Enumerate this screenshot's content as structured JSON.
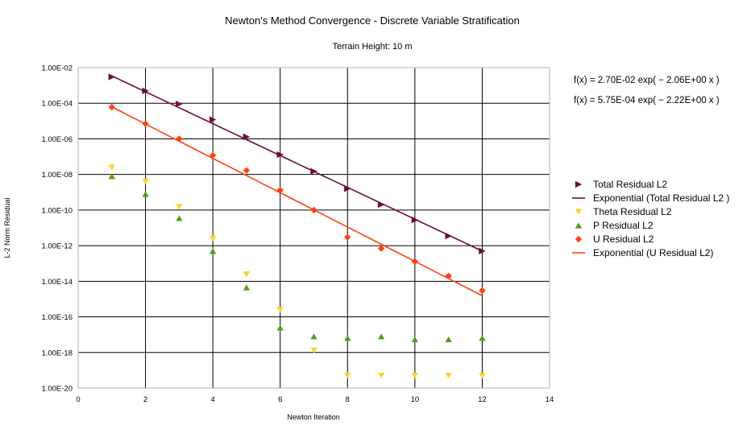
{
  "chart_data": {
    "type": "scatter",
    "title": "Newton's Method Convergence - Discrete Variable Stratification",
    "subtitle": "Terrain Height: 10 m",
    "xlabel": "Newton Iteration",
    "ylabel": "L-2 Norm Residual",
    "xlim": [
      0,
      14
    ],
    "ylim": [
      1e-20,
      0.01
    ],
    "yscale": "log",
    "grid": true,
    "legend_position": "right",
    "x_ticks": [
      "0",
      "2",
      "4",
      "6",
      "8",
      "10",
      "12",
      "14"
    ],
    "y_ticks": [
      "1.00E-02",
      "1.00E-04",
      "1.00E-06",
      "1.00E-08",
      "1.00E-10",
      "1.00E-12",
      "1.00E-14",
      "1.00E-16",
      "1.00E-18",
      "1.00E-20"
    ],
    "equations": [
      "f(x) = 2.70E-02 exp( − 2.06E+00 x )",
      "f(x) = 5.75E-04 exp( − 2.22E+00 x )"
    ],
    "series": [
      {
        "name": "Total Residual L2",
        "marker": "triangle-right",
        "color": "#6b0f2a",
        "x": [
          1,
          2,
          3,
          4,
          5,
          6,
          7,
          8,
          9,
          10,
          11,
          12
        ],
        "y": [
          0.003,
          0.0005,
          9e-05,
          1.2e-05,
          1.3e-06,
          1.3e-07,
          1.5e-08,
          1.6e-09,
          2e-10,
          2.8e-11,
          3.5e-12,
          5e-13
        ]
      },
      {
        "name": "Exponential (Total Residual L2 )",
        "type": "line",
        "color": "#6b0f2a",
        "fit": {
          "a": 0.027,
          "b": -2.06
        },
        "x_range": [
          1,
          12
        ]
      },
      {
        "name": "Theta Residual L2",
        "marker": "triangle-down",
        "color": "#ffd320",
        "x": [
          1,
          2,
          3,
          4,
          5,
          6,
          7,
          8,
          9,
          10,
          11,
          12
        ],
        "y": [
          2.5e-08,
          4e-09,
          1.5e-10,
          2.5e-12,
          2.5e-14,
          2.5e-16,
          1.3e-18,
          5e-20,
          5e-20,
          5e-20,
          5e-20,
          5e-20
        ]
      },
      {
        "name": "P Residual L2",
        "marker": "triangle-up",
        "color": "#579d1c",
        "x": [
          1,
          2,
          3,
          4,
          5,
          6,
          7,
          8,
          9,
          10,
          11,
          12
        ],
        "y": [
          8e-09,
          8e-10,
          3.5e-11,
          5e-13,
          4.5e-15,
          2.5e-17,
          8e-18,
          6.5e-18,
          8e-18,
          5.5e-18,
          5.5e-18,
          6.5e-18
        ]
      },
      {
        "name": "U Residual L2",
        "marker": "diamond",
        "color": "#ff420e",
        "x": [
          1,
          2,
          3,
          4,
          5,
          6,
          7,
          8,
          9,
          10,
          11,
          12
        ],
        "y": [
          6e-05,
          7e-06,
          1e-06,
          1.2e-07,
          1.7e-08,
          1.3e-09,
          1e-10,
          3e-12,
          7e-13,
          1.3e-13,
          2e-14,
          3e-15
        ]
      },
      {
        "name": "Exponential (U Residual L2)",
        "type": "line",
        "color": "#ff420e",
        "fit": {
          "a": 0.000575,
          "b": -2.22
        },
        "x_range": [
          1,
          12
        ]
      }
    ]
  }
}
